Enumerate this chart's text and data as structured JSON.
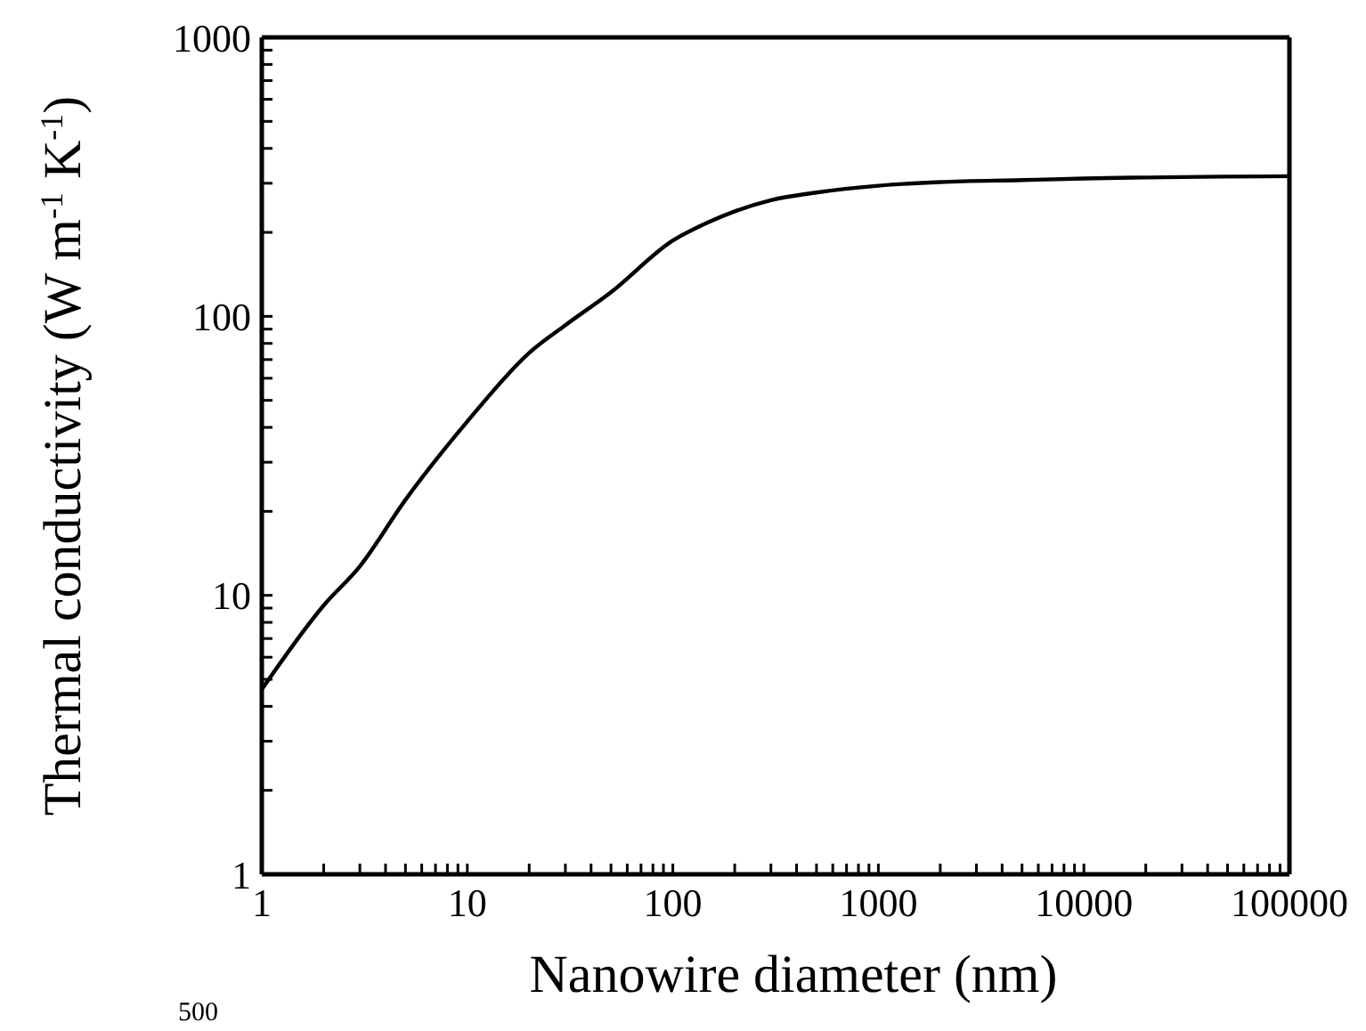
{
  "chart_data": {
    "type": "line",
    "xlabel": "Nanowire diameter (nm)",
    "ylabel": "Thermal conductivity (W m$^{-1}$ K$^{-1}$)",
    "x": [
      1,
      2,
      3,
      5,
      10,
      20,
      30,
      50,
      100,
      150,
      200,
      300,
      500,
      1000,
      2000,
      5000,
      10000,
      100000
    ],
    "series": [
      {
        "color": "#000000",
        "values": [
          4.6,
          9.2,
          12.7,
          22,
          42,
          74,
          93,
          122,
          187,
          218,
          238,
          261,
          278,
          294,
          303,
          308,
          312,
          318
        ]
      }
    ],
    "log": "xy",
    "xlim": [
      1,
      100000
    ],
    "ylim": [
      1,
      1000
    ],
    "xticks": [
      1,
      {
        "value": 2,
        "label": null
      },
      {
        "value": 3,
        "label": null
      },
      {
        "value": 4,
        "label": null
      },
      {
        "value": 5,
        "label": null
      },
      {
        "value": 6,
        "label": null
      },
      {
        "value": 7,
        "label": null
      },
      {
        "value": 8,
        "label": null
      },
      {
        "value": 9,
        "label": null
      },
      10,
      {
        "value": 20,
        "label": null
      },
      {
        "value": 30,
        "label": null
      },
      {
        "value": 40,
        "label": null
      },
      {
        "value": 50,
        "label": null
      },
      {
        "value": 60,
        "label": null
      },
      {
        "value": 70,
        "label": null
      },
      {
        "value": 80,
        "label": null
      },
      {
        "value": 90,
        "label": null
      },
      100,
      {
        "value": 200,
        "label": null
      },
      {
        "value": 300,
        "label": null
      },
      {
        "value": 400,
        "label": null
      },
      {
        "value": 500,
        "label": null
      },
      {
        "value": 600,
        "label": null
      },
      {
        "value": 700,
        "label": null
      },
      {
        "value": 800,
        "label": null
      },
      {
        "value": 900,
        "label": null
      },
      1000,
      {
        "value": 2000,
        "label": null
      },
      {
        "value": 3000,
        "label": null
      },
      {
        "value": 4000,
        "label": null
      },
      {
        "value": 5000,
        "label": null
      },
      {
        "value": 6000,
        "label": null
      },
      {
        "value": 7000,
        "label": null
      },
      {
        "value": 8000,
        "label": null
      },
      {
        "value": 9000,
        "label": null
      },
      10000,
      {
        "value": 20000,
        "label": null
      },
      {
        "value": 30000,
        "label": null
      },
      {
        "value": 40000,
        "label": null
      },
      {
        "value": 50000,
        "label": null
      },
      {
        "value": 60000,
        "label": null
      },
      {
        "value": 70000,
        "label": null
      },
      {
        "value": 80000,
        "label": null
      },
      {
        "value": 90000,
        "label": null
      },
      100000
    ],
    "yticks": [
      1,
      {
        "value": 2,
        "label": null
      },
      {
        "value": 3,
        "label": null
      },
      {
        "value": 4,
        "label": null
      },
      {
        "value": 5,
        "label": null
      },
      {
        "value": 6,
        "label": null
      },
      {
        "value": 7,
        "label": null
      },
      {
        "value": 8,
        "label": null
      },
      {
        "value": 9,
        "label": null
      },
      10,
      {
        "value": 20,
        "label": null
      },
      {
        "value": 30,
        "label": null
      },
      {
        "value": 40,
        "label": null
      },
      {
        "value": 50,
        "label": null
      },
      {
        "value": 60,
        "label": null
      },
      {
        "value": 70,
        "label": null
      },
      {
        "value": 80,
        "label": null
      },
      {
        "value": 90,
        "label": null
      },
      100,
      {
        "value": 200,
        "label": null
      },
      {
        "value": 300,
        "label": null
      },
      {
        "value": 400,
        "label": null
      },
      {
        "value": 500,
        "label": null
      },
      {
        "value": 600,
        "label": null
      },
      {
        "value": 700,
        "label": null
      },
      {
        "value": 800,
        "label": null
      },
      {
        "value": 900,
        "label": null
      },
      1000
    ],
    "marker": "none",
    "line_style": "solid",
    "annotations": [
      "500"
    ]
  }
}
